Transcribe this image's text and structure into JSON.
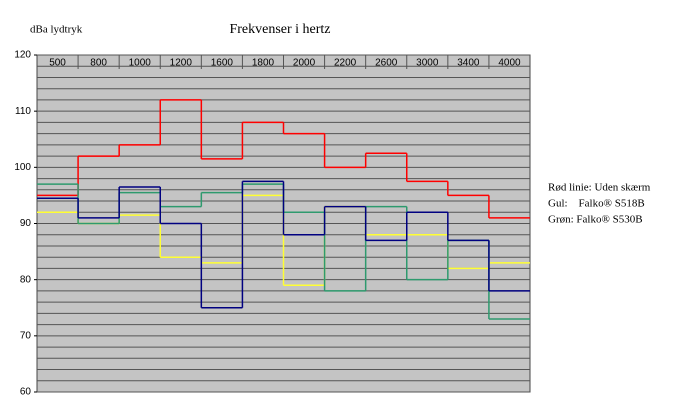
{
  "chart_data": {
    "type": "line",
    "title": "Frekvenser i hertz",
    "y_label": "dBa lydtryk",
    "categories": [
      "500",
      "800",
      "1000",
      "1200",
      "1600",
      "1800",
      "2000",
      "2200",
      "2600",
      "3000",
      "3400",
      "4000"
    ],
    "ylim": [
      60,
      120
    ],
    "yticks": [
      60,
      70,
      80,
      90,
      100,
      110,
      120
    ],
    "grid": true,
    "grid_step": 2,
    "series": [
      {
        "name": "Rød linie: Uden skærm",
        "color": "#ff0000",
        "values": [
          95,
          102,
          104,
          112,
          101.5,
          108,
          106,
          100,
          102.5,
          97.5,
          95,
          91
        ]
      },
      {
        "name": "Gul:    Falko® S518B",
        "color": "#ffff33",
        "values": [
          92,
          90,
          91.5,
          84,
          83,
          95,
          79,
          93,
          88,
          88,
          82,
          83
        ]
      },
      {
        "name": "Grøn: Falko® S530B",
        "color": "#2e9a6e",
        "values": [
          97,
          90,
          95.5,
          93,
          95.5,
          97,
          92,
          78,
          93,
          80,
          87,
          73
        ]
      },
      {
        "color": "#000080",
        "values": [
          94.5,
          91,
          96.5,
          90,
          75,
          97.5,
          88,
          93,
          87,
          92,
          87,
          78
        ]
      }
    ]
  }
}
